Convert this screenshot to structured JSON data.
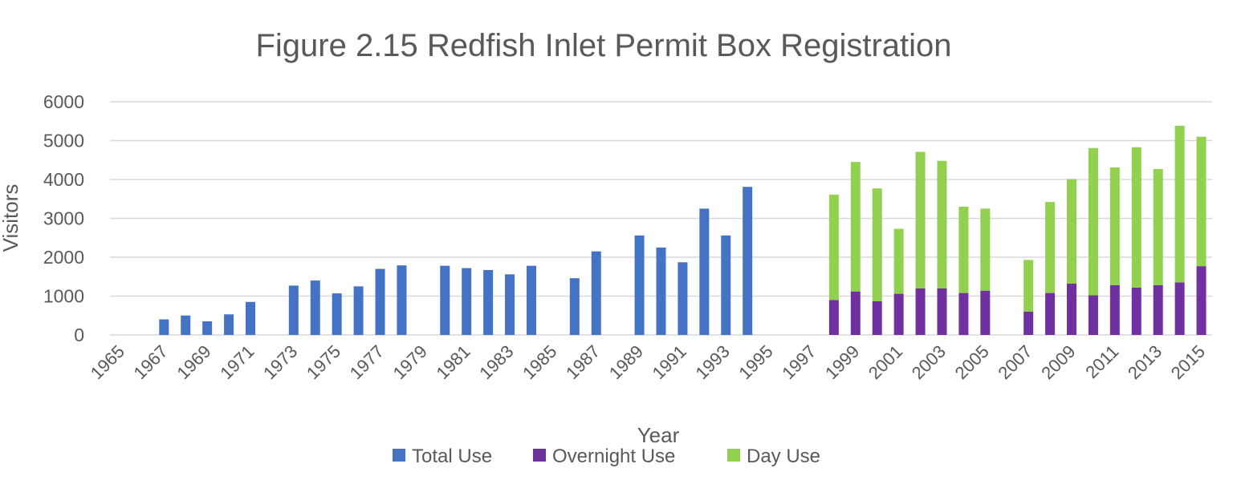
{
  "chart_data": {
    "type": "bar",
    "title": "Figure 2.15 Redfish Inlet Permit Box Registration",
    "xlabel": "Year",
    "ylabel": "Visitors",
    "ylim": [
      0,
      6000
    ],
    "yticks": [
      0,
      1000,
      2000,
      3000,
      4000,
      5000,
      6000
    ],
    "grid": true,
    "legend_position": "bottom",
    "x_start": 1965,
    "x_end": 2015,
    "x_tick_labels": [
      "1965",
      "1967",
      "1969",
      "1971",
      "1973",
      "1975",
      "1977",
      "1979",
      "1981",
      "1983",
      "1985",
      "1987",
      "1989",
      "1991",
      "1993",
      "1995",
      "1997",
      "1999",
      "2001",
      "2003",
      "2005",
      "2007",
      "2009",
      "2011",
      "2013",
      "2015"
    ],
    "series": [
      {
        "name": "Total Use",
        "color": "#4472c4",
        "stack": "a",
        "points": [
          {
            "year": 1967,
            "value": 400
          },
          {
            "year": 1968,
            "value": 500
          },
          {
            "year": 1969,
            "value": 350
          },
          {
            "year": 1970,
            "value": 530
          },
          {
            "year": 1971,
            "value": 850
          },
          {
            "year": 1973,
            "value": 1270
          },
          {
            "year": 1974,
            "value": 1400
          },
          {
            "year": 1975,
            "value": 1070
          },
          {
            "year": 1976,
            "value": 1250
          },
          {
            "year": 1977,
            "value": 1700
          },
          {
            "year": 1978,
            "value": 1790
          },
          {
            "year": 1980,
            "value": 1780
          },
          {
            "year": 1981,
            "value": 1720
          },
          {
            "year": 1982,
            "value": 1670
          },
          {
            "year": 1983,
            "value": 1560
          },
          {
            "year": 1984,
            "value": 1780
          },
          {
            "year": 1986,
            "value": 1460
          },
          {
            "year": 1987,
            "value": 2150
          },
          {
            "year": 1989,
            "value": 2560
          },
          {
            "year": 1990,
            "value": 2250
          },
          {
            "year": 1991,
            "value": 1870
          },
          {
            "year": 1992,
            "value": 3250
          },
          {
            "year": 1993,
            "value": 2560
          },
          {
            "year": 1994,
            "value": 3810
          }
        ]
      },
      {
        "name": "Overnight Use",
        "color": "#7030a0",
        "stack": "b",
        "points": [
          {
            "year": 1998,
            "value": 900
          },
          {
            "year": 1999,
            "value": 1120
          },
          {
            "year": 2000,
            "value": 870
          },
          {
            "year": 2001,
            "value": 1060
          },
          {
            "year": 2002,
            "value": 1200
          },
          {
            "year": 2003,
            "value": 1200
          },
          {
            "year": 2004,
            "value": 1080
          },
          {
            "year": 2005,
            "value": 1140
          },
          {
            "year": 2007,
            "value": 600
          },
          {
            "year": 2008,
            "value": 1080
          },
          {
            "year": 2009,
            "value": 1320
          },
          {
            "year": 2010,
            "value": 1020
          },
          {
            "year": 2011,
            "value": 1280
          },
          {
            "year": 2012,
            "value": 1220
          },
          {
            "year": 2013,
            "value": 1280
          },
          {
            "year": 2014,
            "value": 1350
          },
          {
            "year": 2015,
            "value": 1770
          }
        ]
      },
      {
        "name": "Day Use",
        "color": "#92d050",
        "stack": "b",
        "points": [
          {
            "year": 1998,
            "value": 2710
          },
          {
            "year": 1999,
            "value": 3330
          },
          {
            "year": 2000,
            "value": 2900
          },
          {
            "year": 2001,
            "value": 1670
          },
          {
            "year": 2002,
            "value": 3510
          },
          {
            "year": 2003,
            "value": 3280
          },
          {
            "year": 2004,
            "value": 2220
          },
          {
            "year": 2005,
            "value": 2110
          },
          {
            "year": 2007,
            "value": 1330
          },
          {
            "year": 2008,
            "value": 2340
          },
          {
            "year": 2009,
            "value": 2690
          },
          {
            "year": 2010,
            "value": 3790
          },
          {
            "year": 2011,
            "value": 3030
          },
          {
            "year": 2012,
            "value": 3610
          },
          {
            "year": 2013,
            "value": 2990
          },
          {
            "year": 2014,
            "value": 4030
          },
          {
            "year": 2015,
            "value": 3330
          }
        ]
      }
    ]
  }
}
